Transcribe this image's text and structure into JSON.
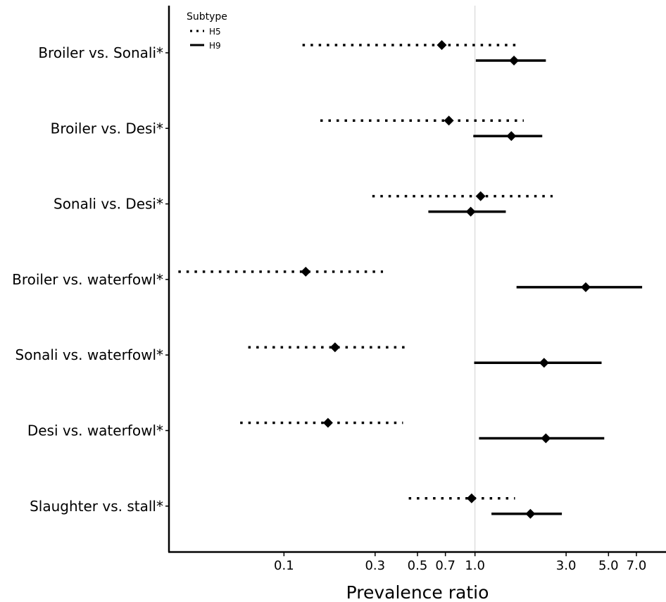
{
  "chart_data": {
    "type": "forest",
    "xlabel": "Prevalence ratio",
    "x_scale": "log",
    "xlim": [
      0.025,
      10.0
    ],
    "x_ticks": [
      0.1,
      0.3,
      0.5,
      0.7,
      1.0,
      3.0,
      5.0,
      7.0
    ],
    "x_tick_labels": [
      "0.1",
      "0.3",
      "0.5",
      "0.7",
      "1.0",
      "3.0",
      "5.0",
      "7.0"
    ],
    "reference_line": 1.0,
    "legend": {
      "title": "Subtype",
      "position": "top-left",
      "entries": [
        {
          "label": "H5",
          "style": "dotted"
        },
        {
          "label": "H9",
          "style": "solid"
        }
      ]
    },
    "categories": [
      "Broiler vs. Sonali*",
      "Broiler vs. Desi*",
      "Sonali vs. Desi*",
      "Broiler vs. waterfowl*",
      "Sonali vs. waterfowl*",
      "Desi vs. waterfowl*",
      "Slaughter vs. stall*"
    ],
    "series": [
      {
        "name": "H5",
        "style": "dotted",
        "points": [
          {
            "estimate": 0.67,
            "lower": 0.125,
            "upper": 1.65
          },
          {
            "estimate": 0.73,
            "lower": 0.155,
            "upper": 1.8
          },
          {
            "estimate": 1.07,
            "lower": 0.29,
            "upper": 2.55
          },
          {
            "estimate": 0.13,
            "lower": 0.028,
            "upper": 0.33
          },
          {
            "estimate": 0.185,
            "lower": 0.065,
            "upper": 0.45
          },
          {
            "estimate": 0.17,
            "lower": 0.059,
            "upper": 0.42
          },
          {
            "estimate": 0.96,
            "lower": 0.45,
            "upper": 1.62
          }
        ]
      },
      {
        "name": "H9",
        "style": "solid",
        "points": [
          {
            "estimate": 1.6,
            "lower": 1.01,
            "upper": 2.35
          },
          {
            "estimate": 1.55,
            "lower": 0.98,
            "upper": 2.25
          },
          {
            "estimate": 0.95,
            "lower": 0.57,
            "upper": 1.45
          },
          {
            "estimate": 3.8,
            "lower": 1.65,
            "upper": 7.5
          },
          {
            "estimate": 2.3,
            "lower": 0.99,
            "upper": 4.6
          },
          {
            "estimate": 2.35,
            "lower": 1.05,
            "upper": 4.75
          },
          {
            "estimate": 1.95,
            "lower": 1.22,
            "upper": 2.85
          }
        ]
      }
    ]
  }
}
